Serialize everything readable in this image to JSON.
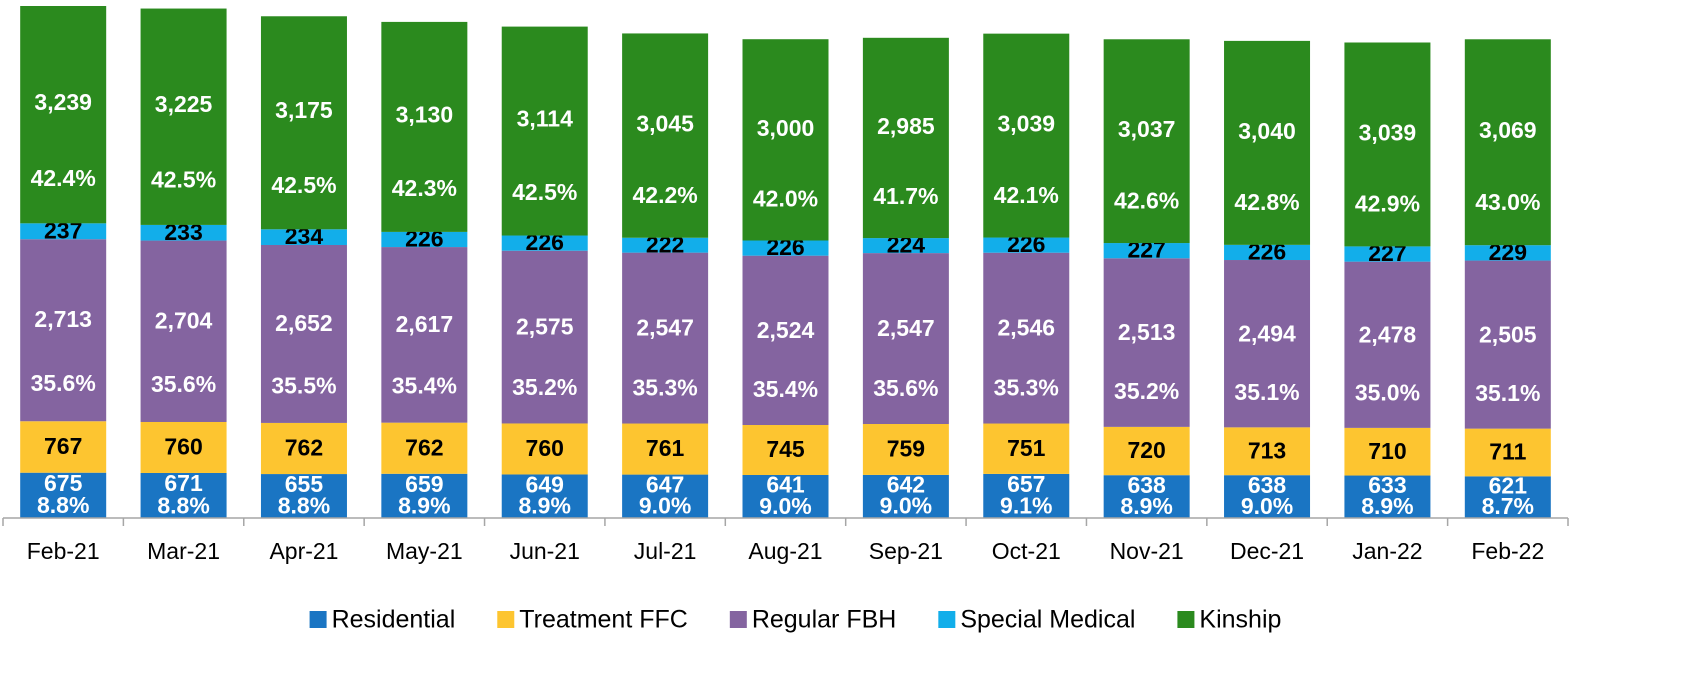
{
  "chart_data": {
    "type": "stacked_bar",
    "categories": [
      "Feb-21",
      "Mar-21",
      "Apr-21",
      "May-21",
      "Jun-21",
      "Jul-21",
      "Aug-21",
      "Sep-21",
      "Oct-21",
      "Nov-21",
      "Dec-21",
      "Jan-22",
      "Feb-22"
    ],
    "series": [
      {
        "name": "Residential",
        "color": "#1a75c3",
        "label_color": "#ffffff",
        "values": [
          675,
          671,
          655,
          659,
          649,
          647,
          641,
          642,
          657,
          638,
          638,
          633,
          621
        ],
        "value_labels": [
          "675",
          "671",
          "655",
          "659",
          "649",
          "647",
          "641",
          "642",
          "657",
          "638",
          "638",
          "633",
          "621"
        ],
        "percent_labels": [
          "8.8%",
          "8.8%",
          "8.8%",
          "8.9%",
          "8.9%",
          "9.0%",
          "9.0%",
          "9.0%",
          "9.1%",
          "8.9%",
          "9.0%",
          "8.9%",
          "8.7%"
        ]
      },
      {
        "name": "Treatment FFC",
        "color": "#fdc530",
        "label_color": "#000000",
        "values": [
          767,
          760,
          762,
          762,
          760,
          761,
          745,
          759,
          751,
          720,
          713,
          710,
          711
        ],
        "value_labels": [
          "767",
          "760",
          "762",
          "762",
          "760",
          "761",
          "745",
          "759",
          "751",
          "720",
          "713",
          "710",
          "711"
        ]
      },
      {
        "name": "Regular FBH",
        "color": "#8464a0",
        "label_color": "#ffffff",
        "values": [
          2713,
          2704,
          2652,
          2617,
          2575,
          2547,
          2524,
          2547,
          2546,
          2513,
          2494,
          2478,
          2505
        ],
        "value_labels": [
          "2,713",
          "2,704",
          "2,652",
          "2,617",
          "2,575",
          "2,547",
          "2,524",
          "2,547",
          "2,546",
          "2,513",
          "2,494",
          "2,478",
          "2,505"
        ],
        "percent_labels": [
          "35.6%",
          "35.6%",
          "35.5%",
          "35.4%",
          "35.2%",
          "35.3%",
          "35.4%",
          "35.6%",
          "35.3%",
          "35.2%",
          "35.1%",
          "35.0%",
          "35.1%"
        ]
      },
      {
        "name": "Special Medical",
        "color": "#12aeea",
        "label_color": "#000000",
        "values": [
          237,
          233,
          234,
          226,
          226,
          222,
          226,
          224,
          226,
          227,
          226,
          227,
          229
        ],
        "value_labels": [
          "237",
          "233",
          "234",
          "226",
          "226",
          "222",
          "226",
          "224",
          "226",
          "227",
          "226",
          "227",
          "229"
        ]
      },
      {
        "name": "Kinship",
        "color": "#2b8a1e",
        "label_color": "#ffffff",
        "values": [
          3239,
          3225,
          3175,
          3130,
          3114,
          3045,
          3000,
          2985,
          3039,
          3037,
          3040,
          3039,
          3069
        ],
        "value_labels": [
          "3,239",
          "3,225",
          "3,175",
          "3,130",
          "3,114",
          "3,045",
          "3,000",
          "2,985",
          "3,039",
          "3,037",
          "3,040",
          "3,039",
          "3,069"
        ],
        "percent_labels": [
          "42.4%",
          "42.5%",
          "42.5%",
          "42.3%",
          "42.5%",
          "42.2%",
          "42.0%",
          "41.7%",
          "42.1%",
          "42.6%",
          "42.8%",
          "42.9%",
          "43.0%"
        ]
      }
    ],
    "legend": "bottom"
  }
}
